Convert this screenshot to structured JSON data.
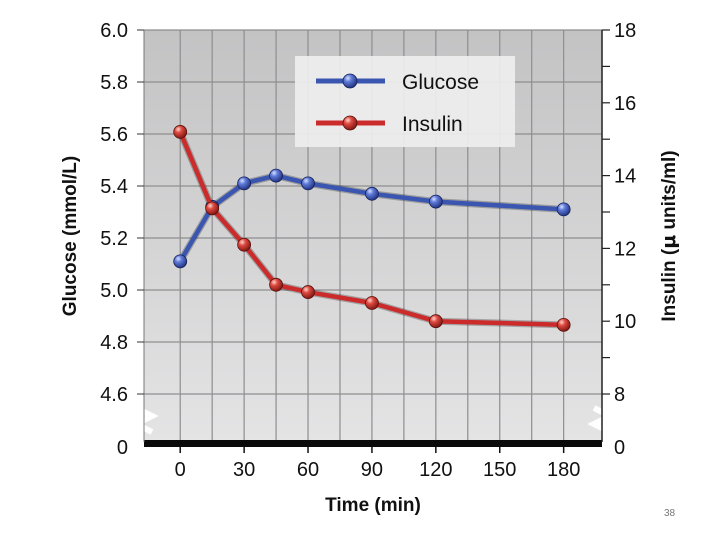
{
  "page_number": "38",
  "chart_data": {
    "type": "line",
    "xlabel": "Time (min)",
    "ylabel_left": "Glucose (mmol/L)",
    "ylabel_right_prefix": "Insulin (",
    "ylabel_right_mu": "μ",
    "ylabel_right_suffix": " units/ml)",
    "x_ticks": [
      "0",
      "30",
      "60",
      "90",
      "120",
      "150",
      "180"
    ],
    "x_tick_values": [
      0,
      30,
      60,
      90,
      120,
      150,
      180
    ],
    "x_range": [
      -17,
      198
    ],
    "y_left_ticks": [
      "4.6",
      "4.8",
      "5.0",
      "5.2",
      "5.4",
      "5.6",
      "5.8",
      "6.0"
    ],
    "y_left_tick_values": [
      4.6,
      4.8,
      5.0,
      5.2,
      5.4,
      5.6,
      5.8,
      6.0
    ],
    "y_left_zero": "0",
    "y_left_range": [
      4.6,
      6.0
    ],
    "y_right_ticks": [
      "8",
      "10",
      "12",
      "14",
      "16",
      "18"
    ],
    "y_right_tick_values": [
      8,
      10,
      12,
      14,
      16,
      18
    ],
    "y_right_zero": "0",
    "y_right_range": [
      8,
      18
    ],
    "axis_break": true,
    "grid": true,
    "legend_position": "top-right",
    "series": [
      {
        "name": "Glucose",
        "axis": "left",
        "color": "#3a56b0",
        "x": [
          0,
          15,
          30,
          45,
          60,
          90,
          120,
          180
        ],
        "values": [
          5.11,
          5.32,
          5.41,
          5.44,
          5.41,
          5.37,
          5.34,
          5.31
        ]
      },
      {
        "name": "Insulin",
        "axis": "right",
        "color": "#cc2b2b",
        "x": [
          0,
          15,
          30,
          45,
          60,
          90,
          120,
          180
        ],
        "values": [
          15.2,
          13.1,
          12.1,
          11.0,
          10.8,
          10.5,
          10.0,
          9.9
        ]
      }
    ]
  }
}
